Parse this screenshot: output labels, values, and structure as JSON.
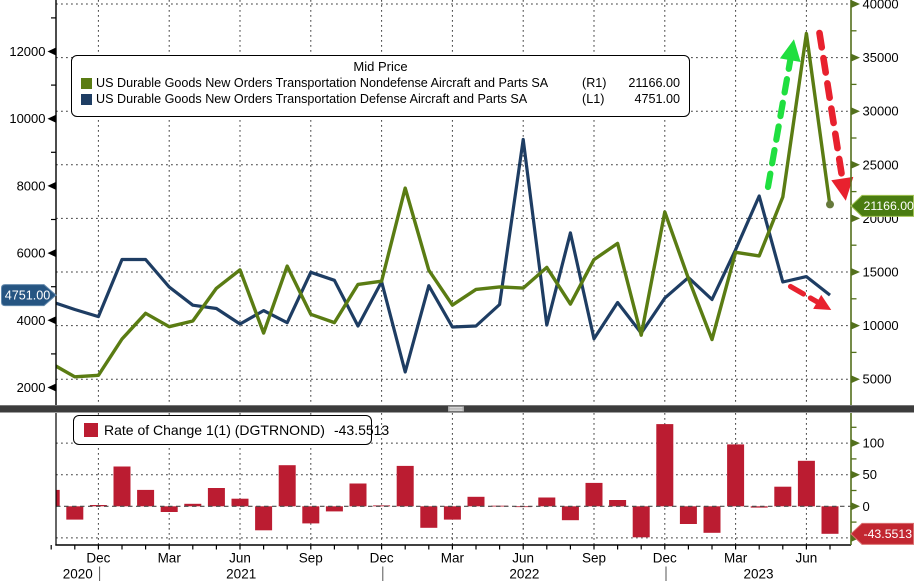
{
  "chart_data": {
    "type": "line+bar",
    "title": "Mid Price",
    "months": [
      "Oct 2020",
      "Nov 2020",
      "Dec 2020",
      "Jan 2021",
      "Feb 2021",
      "Mar 2021",
      "Apr 2021",
      "May 2021",
      "Jun 2021",
      "Jul 2021",
      "Aug 2021",
      "Sep 2021",
      "Oct 2021",
      "Nov 2021",
      "Dec 2021",
      "Jan 2022",
      "Feb 2022",
      "Mar 2022",
      "Apr 2022",
      "May 2022",
      "Jun 2022",
      "Jul 2022",
      "Aug 2022",
      "Sep 2022",
      "Oct 2022",
      "Nov 2022",
      "Dec 2022",
      "Jan 2023",
      "Feb 2023",
      "Mar 2023",
      "Apr 2023",
      "May 2023",
      "Jun 2023",
      "Jul 2023"
    ],
    "series": [
      {
        "name": "US Durable Goods New Orders Transportation Nondefense Aircraft and Parts SA",
        "axis_tag": "(R1)",
        "last_value_label": "21166.00",
        "color": "#5a7c13",
        "values": [
          6470,
          5220,
          5360,
          8750,
          11150,
          9900,
          10430,
          13480,
          15200,
          9310,
          15550,
          11050,
          10280,
          13840,
          14140,
          22830,
          15170,
          11910,
          13380,
          13610,
          13500,
          15430,
          12010,
          16160,
          17670,
          9100,
          20600,
          14400,
          8700,
          16840,
          16500,
          22000,
          37250,
          21166
        ]
      },
      {
        "name": "US Durable Goods New Orders Transportation Defense Aircraft and Parts SA",
        "axis_tag": "(L1)",
        "last_value_label": "4751.00",
        "color": "#1e3d63",
        "values": [
          4560,
          4320,
          4110,
          5810,
          5810,
          4990,
          4450,
          4350,
          3890,
          4290,
          3930,
          5430,
          5190,
          3830,
          5150,
          2460,
          5030,
          3800,
          3830,
          4470,
          9380,
          3860,
          6600,
          3450,
          4530,
          3620,
          4660,
          5270,
          4620,
          6100,
          7700,
          5140,
          5300,
          4751
        ]
      }
    ],
    "bottom_series": {
      "name": "Rate of Change 1(1) (DGTRNOND)",
      "last_value_label": "-43.5513",
      "color": "#bb1c31",
      "values": [
        26,
        -21,
        2,
        63,
        26,
        -9,
        4,
        29,
        12,
        -38,
        65,
        -27,
        -8,
        36,
        1.5,
        64,
        -34,
        -21,
        15,
        1,
        -0.5,
        14,
        -22,
        37,
        10,
        -49,
        130,
        -28,
        -42,
        98,
        -2,
        31,
        72,
        -43.5513
      ]
    },
    "left_axis": {
      "tick_values": [
        2000,
        4000,
        6000,
        8000,
        10000,
        12000
      ],
      "minor_step": 1000,
      "minor_min": 2000,
      "minor_max": 13000
    },
    "right_axis": {
      "tick_values": [
        5000,
        10000,
        15000,
        20000,
        25000,
        30000,
        35000,
        40000
      ],
      "minor_step": 2500,
      "minor_min": 5000,
      "minor_max": 40000
    },
    "bottom_axis": {
      "tick_values": [
        0,
        50,
        100
      ],
      "unlabeled_tick_values": [
        -50
      ],
      "minor_step": 25,
      "minor_min": -25,
      "minor_max": 125
    },
    "x_axis": {
      "quarter_labels": [
        "Dec",
        "Mar",
        "Jun",
        "Sep",
        "Dec",
        "Mar",
        "Jun",
        "Sep",
        "Dec",
        "Mar",
        "Jun"
      ],
      "quarter_month_indices": [
        2,
        5,
        8,
        11,
        14,
        17,
        20,
        23,
        26,
        29,
        32
      ],
      "years": [
        {
          "label": "2020",
          "sep_month_index": 2
        },
        {
          "label": "2021",
          "sep_month_index": 14
        },
        {
          "label": "2022",
          "sep_month_index": 26
        },
        {
          "label": "2023",
          "sep_month_index": null
        }
      ]
    },
    "gridlines": {
      "h_top_values": [
        5000,
        10000,
        15000,
        20000,
        25000,
        30000,
        35000,
        40000
      ],
      "h_bottom_values": [
        -50,
        50,
        100
      ],
      "style": "dotted"
    },
    "legend_top": {
      "title": "Mid Price"
    },
    "annotations": {
      "up_arrow": {
        "color": "#1fdf3f",
        "x1": 768,
        "y1": 187,
        "x2": 791,
        "y2": 56
      },
      "down_arrow": {
        "color": "#e8212e",
        "x1": 819.5,
        "y1": 33,
        "x2": 843,
        "y2": 183
      },
      "small_down_arrow": {
        "color": "#e8212e",
        "x1": 790.5,
        "y1": 286.5,
        "x2": 820,
        "y2": 303.5
      }
    },
    "value_boxes": {
      "left": {
        "text": "4751.00",
        "fill": "#265582",
        "edge": "#6288ab"
      },
      "right": {
        "text": "21166.00",
        "fill": "#4a7c11",
        "edge": "#a3c454"
      },
      "bottom": {
        "text": "-43.5513",
        "fill": "#c22731",
        "edge": "#da7070"
      }
    },
    "colors": {
      "background": "#ffffff",
      "axis_black": "#000000",
      "axis_green": "#53701c",
      "grid": "#404040",
      "divider": "#3c3c3c",
      "divider_handle": "#a9a9a9",
      "zero_line": "#4a4a4a",
      "text": "#000000"
    }
  }
}
